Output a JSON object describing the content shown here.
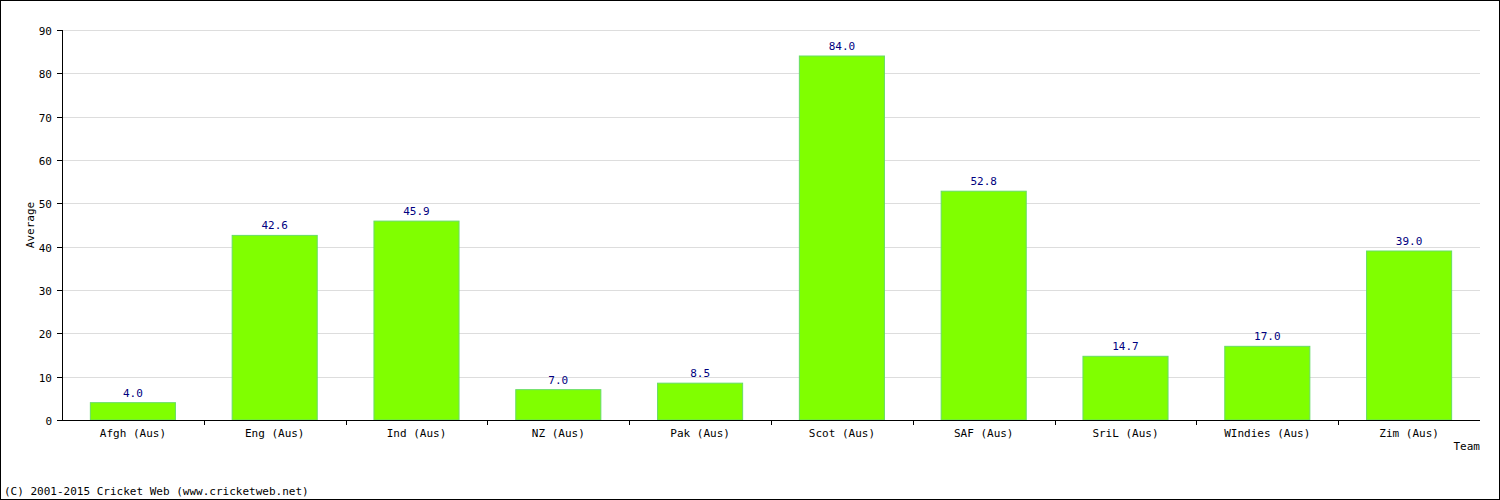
{
  "chart_data": {
    "type": "bar",
    "categories": [
      "Afgh (Aus)",
      "Eng (Aus)",
      "Ind (Aus)",
      "NZ (Aus)",
      "Pak (Aus)",
      "Scot (Aus)",
      "SAF (Aus)",
      "SriL (Aus)",
      "WIndies (Aus)",
      "Zim (Aus)"
    ],
    "values": [
      4,
      42.6,
      45.9,
      7,
      8.5,
      84,
      52.8,
      14.7,
      17,
      39
    ],
    "value_labels": [
      "4.0",
      "42.6",
      "45.9",
      "7.0",
      "8.5",
      "84.0",
      "52.8",
      "14.7",
      "17.0",
      "39.0"
    ],
    "color": "#80ff00",
    "x_label": "Team",
    "y_label": "Average",
    "annotations": [
      "(C) 2001-2015 Cricket Web (www.cricketweb.net)"
    ],
    "ylim": [
      0,
      90
    ],
    "yticks": [
      0,
      10,
      20,
      30,
      40,
      50,
      60,
      70,
      80,
      90
    ],
    "grid": true,
    "data_labels": true
  }
}
